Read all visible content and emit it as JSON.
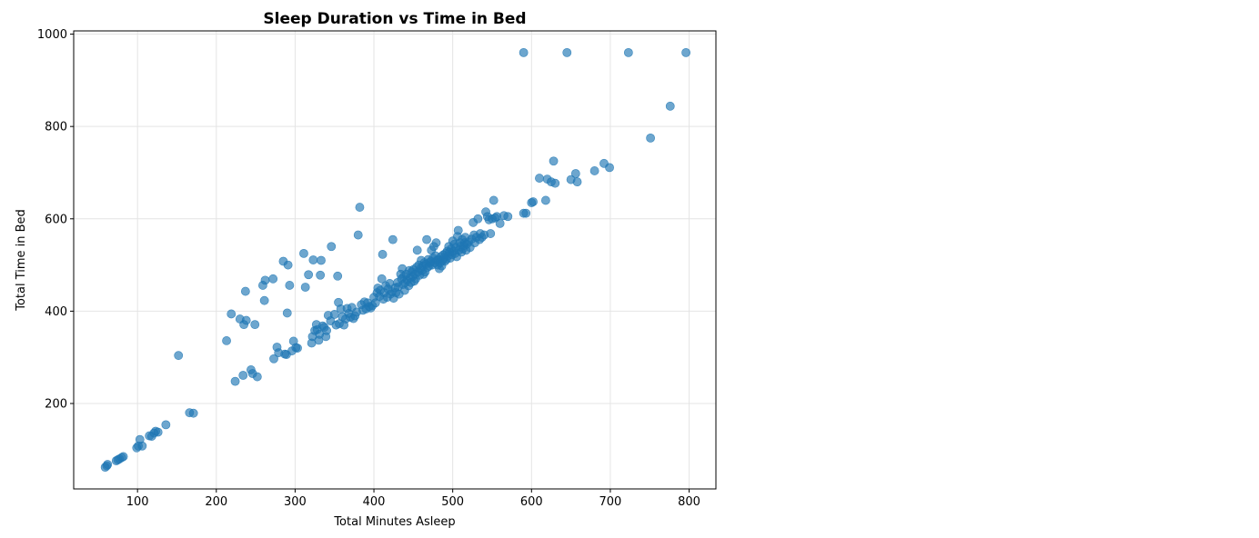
{
  "chart_data": {
    "type": "scatter",
    "title": "Sleep Duration vs Time in Bed",
    "xlabel": "Total Minutes Asleep",
    "ylabel": "Total Time in Bed",
    "xlim": [
      19,
      834
    ],
    "ylim": [
      15,
      1007
    ],
    "x_ticks": [
      100,
      200,
      300,
      400,
      500,
      600,
      700,
      800
    ],
    "y_ticks": [
      200,
      400,
      600,
      800,
      1000
    ],
    "grid": true,
    "legend": "none",
    "point_color": "#1f77b4",
    "point_opacity": 0.65,
    "points": [
      [
        59,
        62
      ],
      [
        61,
        65
      ],
      [
        62,
        68
      ],
      [
        73,
        76
      ],
      [
        75,
        78
      ],
      [
        77,
        80
      ],
      [
        80,
        83
      ],
      [
        82,
        85
      ],
      [
        99,
        104
      ],
      [
        101,
        108
      ],
      [
        103,
        122
      ],
      [
        106,
        108
      ],
      [
        115,
        130
      ],
      [
        118,
        129
      ],
      [
        121,
        136
      ],
      [
        123,
        140
      ],
      [
        126,
        138
      ],
      [
        136,
        154
      ],
      [
        152,
        304
      ],
      [
        166,
        180
      ],
      [
        171,
        179
      ],
      [
        213,
        336
      ],
      [
        219,
        394
      ],
      [
        224,
        248
      ],
      [
        230,
        383
      ],
      [
        234,
        261
      ],
      [
        235,
        371
      ],
      [
        237,
        443
      ],
      [
        238,
        380
      ],
      [
        244,
        273
      ],
      [
        246,
        265
      ],
      [
        249,
        371
      ],
      [
        252,
        258
      ],
      [
        259,
        456
      ],
      [
        261,
        423
      ],
      [
        262,
        467
      ],
      [
        272,
        470
      ],
      [
        273,
        297
      ],
      [
        277,
        322
      ],
      [
        279,
        310
      ],
      [
        285,
        508
      ],
      [
        287,
        307
      ],
      [
        289,
        306
      ],
      [
        290,
        396
      ],
      [
        291,
        500
      ],
      [
        293,
        456
      ],
      [
        296,
        314
      ],
      [
        298,
        335
      ],
      [
        301,
        321
      ],
      [
        303,
        320
      ],
      [
        311,
        525
      ],
      [
        313,
        452
      ],
      [
        317,
        479
      ],
      [
        321,
        331
      ],
      [
        322,
        345
      ],
      [
        323,
        511
      ],
      [
        325,
        358
      ],
      [
        327,
        371
      ],
      [
        328,
        360
      ],
      [
        330,
        337
      ],
      [
        331,
        350
      ],
      [
        332,
        478
      ],
      [
        333,
        510
      ],
      [
        335,
        368
      ],
      [
        337,
        365
      ],
      [
        339,
        345
      ],
      [
        340,
        358
      ],
      [
        342,
        391
      ],
      [
        345,
        379
      ],
      [
        346,
        540
      ],
      [
        350,
        393
      ],
      [
        352,
        370
      ],
      [
        354,
        476
      ],
      [
        355,
        419
      ],
      [
        356,
        373
      ],
      [
        358,
        405
      ],
      [
        360,
        388
      ],
      [
        362,
        370
      ],
      [
        364,
        383
      ],
      [
        366,
        406
      ],
      [
        368,
        395
      ],
      [
        370,
        387
      ],
      [
        372,
        408
      ],
      [
        374,
        384
      ],
      [
        376,
        390
      ],
      [
        378,
        398
      ],
      [
        380,
        565
      ],
      [
        382,
        625
      ],
      [
        384,
        414
      ],
      [
        386,
        402
      ],
      [
        388,
        420
      ],
      [
        390,
        405
      ],
      [
        392,
        418
      ],
      [
        394,
        410
      ],
      [
        396,
        407
      ],
      [
        398,
        412
      ],
      [
        400,
        430
      ],
      [
        402,
        418
      ],
      [
        404,
        440
      ],
      [
        405,
        450
      ],
      [
        407,
        432
      ],
      [
        408,
        445
      ],
      [
        410,
        470
      ],
      [
        411,
        523
      ],
      [
        412,
        426
      ],
      [
        413,
        440
      ],
      [
        415,
        455
      ],
      [
        417,
        430
      ],
      [
        418,
        448
      ],
      [
        420,
        460
      ],
      [
        421,
        437
      ],
      [
        423,
        442
      ],
      [
        424,
        555
      ],
      [
        425,
        428
      ],
      [
        427,
        451
      ],
      [
        428,
        440
      ],
      [
        430,
        462
      ],
      [
        431,
        453
      ],
      [
        432,
        437
      ],
      [
        434,
        480
      ],
      [
        435,
        470
      ],
      [
        436,
        492
      ],
      [
        437,
        458
      ],
      [
        438,
        475
      ],
      [
        439,
        445
      ],
      [
        440,
        462
      ],
      [
        441,
        480
      ],
      [
        442,
        468
      ],
      [
        444,
        455
      ],
      [
        445,
        488
      ],
      [
        446,
        472
      ],
      [
        447,
        462
      ],
      [
        448,
        485
      ],
      [
        449,
        475
      ],
      [
        450,
        490
      ],
      [
        451,
        465
      ],
      [
        452,
        480
      ],
      [
        453,
        470
      ],
      [
        454,
        495
      ],
      [
        455,
        532
      ],
      [
        456,
        485
      ],
      [
        457,
        500
      ],
      [
        458,
        478
      ],
      [
        459,
        492
      ],
      [
        460,
        510
      ],
      [
        461,
        488
      ],
      [
        462,
        498
      ],
      [
        463,
        480
      ],
      [
        464,
        505
      ],
      [
        465,
        485
      ],
      [
        466,
        502
      ],
      [
        467,
        555
      ],
      [
        468,
        495
      ],
      [
        469,
        512
      ],
      [
        470,
        498
      ],
      [
        471,
        505
      ],
      [
        472,
        508
      ],
      [
        473,
        532
      ],
      [
        474,
        500
      ],
      [
        475,
        515
      ],
      [
        476,
        540
      ],
      [
        477,
        505
      ],
      [
        478,
        520
      ],
      [
        479,
        548
      ],
      [
        480,
        510
      ],
      [
        481,
        500
      ],
      [
        482,
        512
      ],
      [
        483,
        492
      ],
      [
        484,
        505
      ],
      [
        485,
        518
      ],
      [
        486,
        498
      ],
      [
        487,
        510
      ],
      [
        488,
        522
      ],
      [
        489,
        515
      ],
      [
        490,
        508
      ],
      [
        491,
        525
      ],
      [
        492,
        512
      ],
      [
        493,
        530
      ],
      [
        494,
        520
      ],
      [
        495,
        540
      ],
      [
        496,
        528
      ],
      [
        497,
        515
      ],
      [
        498,
        535
      ],
      [
        499,
        522
      ],
      [
        500,
        552
      ],
      [
        501,
        530
      ],
      [
        502,
        545
      ],
      [
        503,
        525
      ],
      [
        504,
        538
      ],
      [
        505,
        518
      ],
      [
        506,
        562
      ],
      [
        507,
        575
      ],
      [
        508,
        532
      ],
      [
        509,
        548
      ],
      [
        510,
        540
      ],
      [
        511,
        528
      ],
      [
        512,
        555
      ],
      [
        513,
        535
      ],
      [
        514,
        542
      ],
      [
        515,
        548
      ],
      [
        516,
        560
      ],
      [
        517,
        532
      ],
      [
        518,
        545
      ],
      [
        520,
        550
      ],
      [
        522,
        538
      ],
      [
        524,
        556
      ],
      [
        526,
        592
      ],
      [
        527,
        565
      ],
      [
        528,
        548
      ],
      [
        530,
        560
      ],
      [
        532,
        600
      ],
      [
        534,
        555
      ],
      [
        535,
        568
      ],
      [
        537,
        560
      ],
      [
        540,
        565
      ],
      [
        542,
        615
      ],
      [
        544,
        605
      ],
      [
        546,
        598
      ],
      [
        548,
        568
      ],
      [
        550,
        600
      ],
      [
        552,
        640
      ],
      [
        554,
        602
      ],
      [
        556,
        605
      ],
      [
        560,
        590
      ],
      [
        565,
        607
      ],
      [
        570,
        605
      ],
      [
        590,
        612
      ],
      [
        593,
        612
      ],
      [
        600,
        635
      ],
      [
        602,
        637
      ],
      [
        610,
        688
      ],
      [
        618,
        640
      ],
      [
        620,
        686
      ],
      [
        625,
        680
      ],
      [
        628,
        725
      ],
      [
        630,
        677
      ],
      [
        650,
        685
      ],
      [
        656,
        698
      ],
      [
        658,
        680
      ],
      [
        680,
        704
      ],
      [
        692,
        720
      ],
      [
        699,
        711
      ],
      [
        751,
        775
      ],
      [
        776,
        844
      ],
      [
        590,
        960
      ],
      [
        645,
        960
      ],
      [
        723,
        960
      ],
      [
        796,
        960
      ]
    ]
  }
}
